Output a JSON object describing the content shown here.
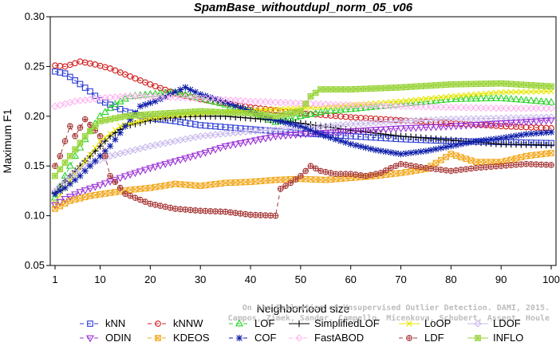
{
  "chart_data": {
    "type": "line",
    "title": "SpamBase_withoutdupl_norm_05_v06",
    "xlabel": "Neighborhood size",
    "ylabel": "Maximum F1",
    "xlim": [
      1,
      100
    ],
    "ylim": [
      0.05,
      0.3
    ],
    "xticks": [
      1,
      10,
      20,
      30,
      40,
      50,
      60,
      70,
      80,
      90,
      100
    ],
    "yticks": [
      "0.05",
      "0.10",
      "0.15",
      "0.20",
      "0.25",
      "0.30"
    ],
    "grid": false,
    "legend_position": "bottom",
    "credit": [
      "Campos, Zimek, Sander, Campello, Micenkova, Schubert, Assent, Houle",
      "On the Evaluation of Unsupervised Outlier Detection. DAMI, 2015."
    ],
    "series": [
      {
        "name": "kNN",
        "color": "#2b3bd6",
        "marker": "square",
        "dash": "5,4",
        "points": [
          [
            1,
            0.245
          ],
          [
            3,
            0.243
          ],
          [
            5,
            0.236
          ],
          [
            8,
            0.225
          ],
          [
            10,
            0.216
          ],
          [
            15,
            0.205
          ],
          [
            20,
            0.198
          ],
          [
            25,
            0.195
          ],
          [
            30,
            0.191
          ],
          [
            40,
            0.187
          ],
          [
            50,
            0.183
          ],
          [
            60,
            0.18
          ],
          [
            70,
            0.177
          ],
          [
            80,
            0.175
          ],
          [
            90,
            0.174
          ],
          [
            100,
            0.173
          ]
        ]
      },
      {
        "name": "kNNW",
        "color": "#d01c1c",
        "marker": "circle",
        "dash": "5,4",
        "points": [
          [
            1,
            0.251
          ],
          [
            3,
            0.25
          ],
          [
            6,
            0.255
          ],
          [
            9,
            0.252
          ],
          [
            12,
            0.248
          ],
          [
            15,
            0.242
          ],
          [
            20,
            0.232
          ],
          [
            25,
            0.223
          ],
          [
            30,
            0.217
          ],
          [
            40,
            0.209
          ],
          [
            50,
            0.203
          ],
          [
            60,
            0.199
          ],
          [
            70,
            0.196
          ],
          [
            80,
            0.193
          ],
          [
            90,
            0.19
          ],
          [
            100,
            0.188
          ]
        ]
      },
      {
        "name": "LOF",
        "color": "#2bd42b",
        "marker": "triangle-up",
        "dash": "5,4",
        "points": [
          [
            1,
            0.118
          ],
          [
            3,
            0.14
          ],
          [
            5,
            0.16
          ],
          [
            8,
            0.185
          ],
          [
            10,
            0.2
          ],
          [
            13,
            0.212
          ],
          [
            16,
            0.22
          ],
          [
            20,
            0.222
          ],
          [
            25,
            0.224
          ],
          [
            30,
            0.218
          ],
          [
            40,
            0.205
          ],
          [
            45,
            0.194
          ],
          [
            50,
            0.2
          ],
          [
            55,
            0.205
          ],
          [
            60,
            0.207
          ],
          [
            70,
            0.212
          ],
          [
            80,
            0.217
          ],
          [
            90,
            0.218
          ],
          [
            100,
            0.214
          ]
        ]
      },
      {
        "name": "SimplifiedLOF",
        "color": "#000000",
        "marker": "plus",
        "dash": "",
        "points": [
          [
            1,
            0.123
          ],
          [
            3,
            0.135
          ],
          [
            6,
            0.15
          ],
          [
            9,
            0.165
          ],
          [
            12,
            0.18
          ],
          [
            15,
            0.19
          ],
          [
            20,
            0.196
          ],
          [
            25,
            0.199
          ],
          [
            30,
            0.2
          ],
          [
            35,
            0.2
          ],
          [
            40,
            0.198
          ],
          [
            45,
            0.196
          ],
          [
            50,
            0.193
          ],
          [
            60,
            0.186
          ],
          [
            70,
            0.18
          ],
          [
            80,
            0.176
          ],
          [
            90,
            0.172
          ],
          [
            100,
            0.171
          ]
        ]
      },
      {
        "name": "LoOP",
        "color": "#e6e600",
        "marker": "cross",
        "dash": "",
        "points": [
          [
            1,
            0.113
          ],
          [
            4,
            0.135
          ],
          [
            7,
            0.155
          ],
          [
            10,
            0.175
          ],
          [
            14,
            0.19
          ],
          [
            20,
            0.198
          ],
          [
            25,
            0.201
          ],
          [
            30,
            0.203
          ],
          [
            40,
            0.206
          ],
          [
            50,
            0.208
          ],
          [
            60,
            0.211
          ],
          [
            70,
            0.215
          ],
          [
            80,
            0.22
          ],
          [
            90,
            0.224
          ],
          [
            100,
            0.225
          ]
        ]
      },
      {
        "name": "LDOF",
        "color": "#c8b8ec",
        "marker": "diamond",
        "dash": "",
        "points": [
          [
            1,
            0.125
          ],
          [
            4,
            0.14
          ],
          [
            8,
            0.152
          ],
          [
            12,
            0.16
          ],
          [
            16,
            0.165
          ],
          [
            20,
            0.17
          ],
          [
            25,
            0.175
          ],
          [
            30,
            0.18
          ],
          [
            40,
            0.185
          ],
          [
            50,
            0.188
          ],
          [
            60,
            0.192
          ],
          [
            70,
            0.195
          ],
          [
            80,
            0.197
          ],
          [
            90,
            0.198
          ],
          [
            100,
            0.199
          ]
        ]
      },
      {
        "name": "ODIN",
        "color": "#9b31d6",
        "marker": "triangle-down",
        "dash": "5,4",
        "points": [
          [
            1,
            0.111
          ],
          [
            3,
            0.117
          ],
          [
            6,
            0.124
          ],
          [
            10,
            0.131
          ],
          [
            15,
            0.14
          ],
          [
            20,
            0.148
          ],
          [
            25,
            0.155
          ],
          [
            30,
            0.162
          ],
          [
            35,
            0.17
          ],
          [
            40,
            0.175
          ],
          [
            45,
            0.18
          ],
          [
            50,
            0.182
          ],
          [
            60,
            0.185
          ],
          [
            70,
            0.188
          ],
          [
            80,
            0.19
          ],
          [
            90,
            0.193
          ],
          [
            100,
            0.196
          ]
        ]
      },
      {
        "name": "KDEOS",
        "color": "#f2a81d",
        "marker": "square-x",
        "dash": "5,4",
        "points": [
          [
            1,
            0.107
          ],
          [
            4,
            0.115
          ],
          [
            8,
            0.12
          ],
          [
            12,
            0.123
          ],
          [
            16,
            0.126
          ],
          [
            20,
            0.128
          ],
          [
            25,
            0.132
          ],
          [
            30,
            0.13
          ],
          [
            35,
            0.133
          ],
          [
            40,
            0.134
          ],
          [
            45,
            0.136
          ],
          [
            50,
            0.137
          ],
          [
            55,
            0.136
          ],
          [
            60,
            0.138
          ],
          [
            65,
            0.14
          ],
          [
            70,
            0.143
          ],
          [
            75,
            0.147
          ],
          [
            80,
            0.162
          ],
          [
            85,
            0.154
          ],
          [
            90,
            0.154
          ],
          [
            95,
            0.16
          ],
          [
            100,
            0.163
          ]
        ]
      },
      {
        "name": "COF",
        "color": "#0f1fa8",
        "marker": "asterisk",
        "dash": "5,4",
        "points": [
          [
            1,
            0.122
          ],
          [
            3,
            0.128
          ],
          [
            6,
            0.14
          ],
          [
            9,
            0.155
          ],
          [
            12,
            0.17
          ],
          [
            15,
            0.19
          ],
          [
            18,
            0.21
          ],
          [
            21,
            0.215
          ],
          [
            24,
            0.222
          ],
          [
            27,
            0.229
          ],
          [
            30,
            0.222
          ],
          [
            35,
            0.214
          ],
          [
            40,
            0.205
          ],
          [
            45,
            0.196
          ],
          [
            50,
            0.19
          ],
          [
            55,
            0.18
          ],
          [
            60,
            0.172
          ],
          [
            65,
            0.166
          ],
          [
            70,
            0.162
          ],
          [
            75,
            0.165
          ],
          [
            80,
            0.17
          ],
          [
            85,
            0.175
          ],
          [
            90,
            0.178
          ],
          [
            95,
            0.182
          ],
          [
            100,
            0.184
          ]
        ]
      },
      {
        "name": "FastABOD",
        "color": "#ffb3f0",
        "marker": "diamond",
        "dash": "5,4",
        "points": [
          [
            1,
            0.21
          ],
          [
            5,
            0.215
          ],
          [
            10,
            0.218
          ],
          [
            15,
            0.22
          ],
          [
            20,
            0.22
          ],
          [
            30,
            0.218
          ],
          [
            40,
            0.215
          ],
          [
            50,
            0.213
          ],
          [
            60,
            0.211
          ],
          [
            70,
            0.21
          ],
          [
            80,
            0.209
          ],
          [
            90,
            0.208
          ],
          [
            100,
            0.208
          ]
        ]
      },
      {
        "name": "LDF",
        "color": "#a83a3a",
        "marker": "circle-plus",
        "dash": "5,4",
        "points": [
          [
            1,
            0.15
          ],
          [
            2,
            0.16
          ],
          [
            3,
            0.175
          ],
          [
            4,
            0.19
          ],
          [
            5,
            0.18
          ],
          [
            7,
            0.197
          ],
          [
            10,
            0.18
          ],
          [
            12,
            0.14
          ],
          [
            15,
            0.122
          ],
          [
            20,
            0.112
          ],
          [
            25,
            0.107
          ],
          [
            30,
            0.105
          ],
          [
            35,
            0.104
          ],
          [
            40,
            0.101
          ],
          [
            45,
            0.1
          ],
          [
            46,
            0.127
          ],
          [
            48,
            0.133
          ],
          [
            50,
            0.14
          ],
          [
            52,
            0.15
          ],
          [
            54,
            0.145
          ],
          [
            57,
            0.142
          ],
          [
            60,
            0.142
          ],
          [
            63,
            0.14
          ],
          [
            66,
            0.143
          ],
          [
            68,
            0.148
          ],
          [
            70,
            0.152
          ],
          [
            75,
            0.148
          ],
          [
            80,
            0.145
          ],
          [
            85,
            0.148
          ],
          [
            90,
            0.15
          ],
          [
            95,
            0.152
          ],
          [
            100,
            0.151
          ]
        ]
      },
      {
        "name": "INFLO",
        "color": "#9ad43a",
        "marker": "square-star",
        "dash": "",
        "points": [
          [
            1,
            0.14
          ],
          [
            4,
            0.16
          ],
          [
            7,
            0.18
          ],
          [
            10,
            0.195
          ],
          [
            15,
            0.2
          ],
          [
            20,
            0.202
          ],
          [
            30,
            0.205
          ],
          [
            40,
            0.203
          ],
          [
            45,
            0.2
          ],
          [
            50,
            0.205
          ],
          [
            52,
            0.22
          ],
          [
            54,
            0.227
          ],
          [
            60,
            0.227
          ],
          [
            70,
            0.229
          ],
          [
            80,
            0.232
          ],
          [
            90,
            0.233
          ],
          [
            100,
            0.23
          ]
        ]
      }
    ],
    "legend": [
      [
        "kNN",
        "kNNW",
        "LOF",
        "SimplifiedLOF",
        "LoOP",
        "LDOF"
      ],
      [
        "ODIN",
        "KDEOS",
        "COF",
        "FastABOD",
        "LDF",
        "INFLO"
      ]
    ]
  }
}
